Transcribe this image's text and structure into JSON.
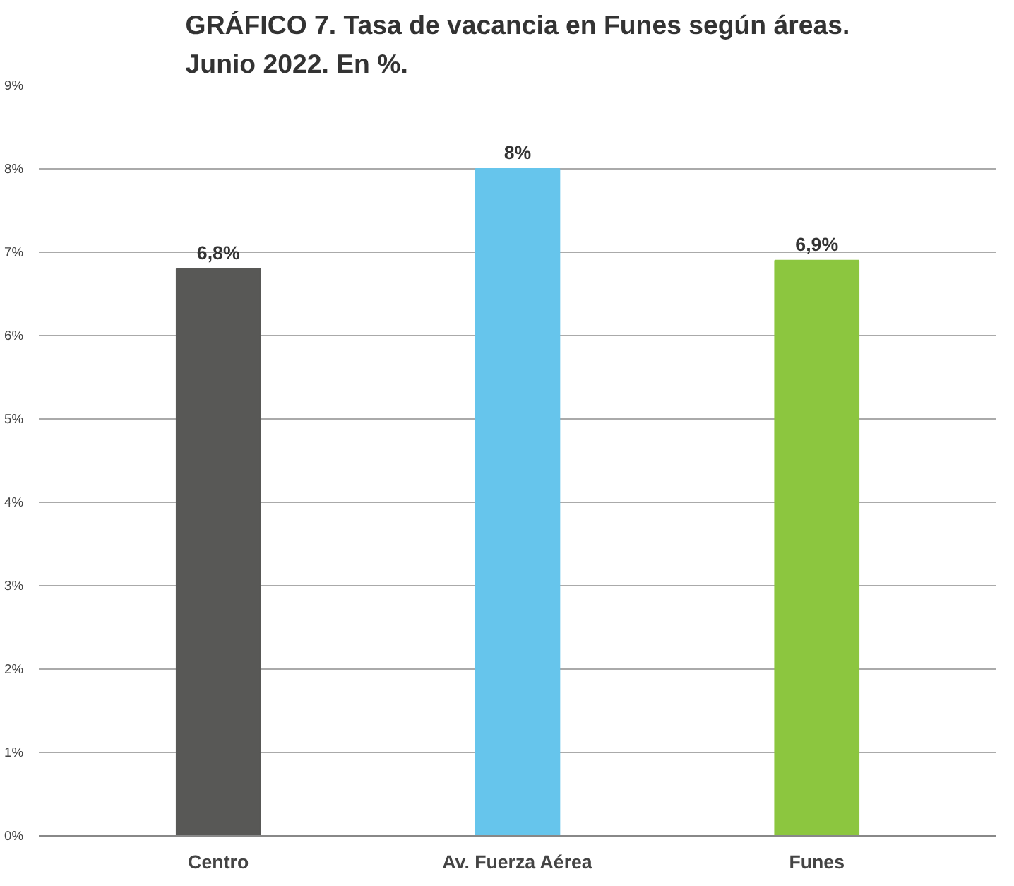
{
  "chart_data": {
    "type": "bar",
    "title": "GRÁFICO 7. Tasa de vacancia en Funes según áreas.\nJunio 2022. En %.",
    "categories": [
      "Centro",
      "Av. Fuerza Aérea",
      "Funes"
    ],
    "values": [
      6.8,
      8,
      6.9
    ],
    "colors": [
      "#585856",
      "#66c5ec",
      "#8cc63f"
    ],
    "value_labels": [
      "6,8%",
      "8%",
      "6,9%"
    ],
    "ylim": [
      0,
      9
    ],
    "yticks": [
      {
        "value": 0,
        "label": "0%"
      },
      {
        "value": 1,
        "label": "1%"
      },
      {
        "value": 2,
        "label": "2%"
      },
      {
        "value": 3,
        "label": "3%"
      },
      {
        "value": 4,
        "label": "4%"
      },
      {
        "value": 5,
        "label": "5%"
      },
      {
        "value": 6,
        "label": "6%"
      },
      {
        "value": 7,
        "label": "7%"
      },
      {
        "value": 8,
        "label": "8%"
      },
      {
        "value": 9,
        "label": "9%"
      }
    ],
    "grid": "y"
  }
}
